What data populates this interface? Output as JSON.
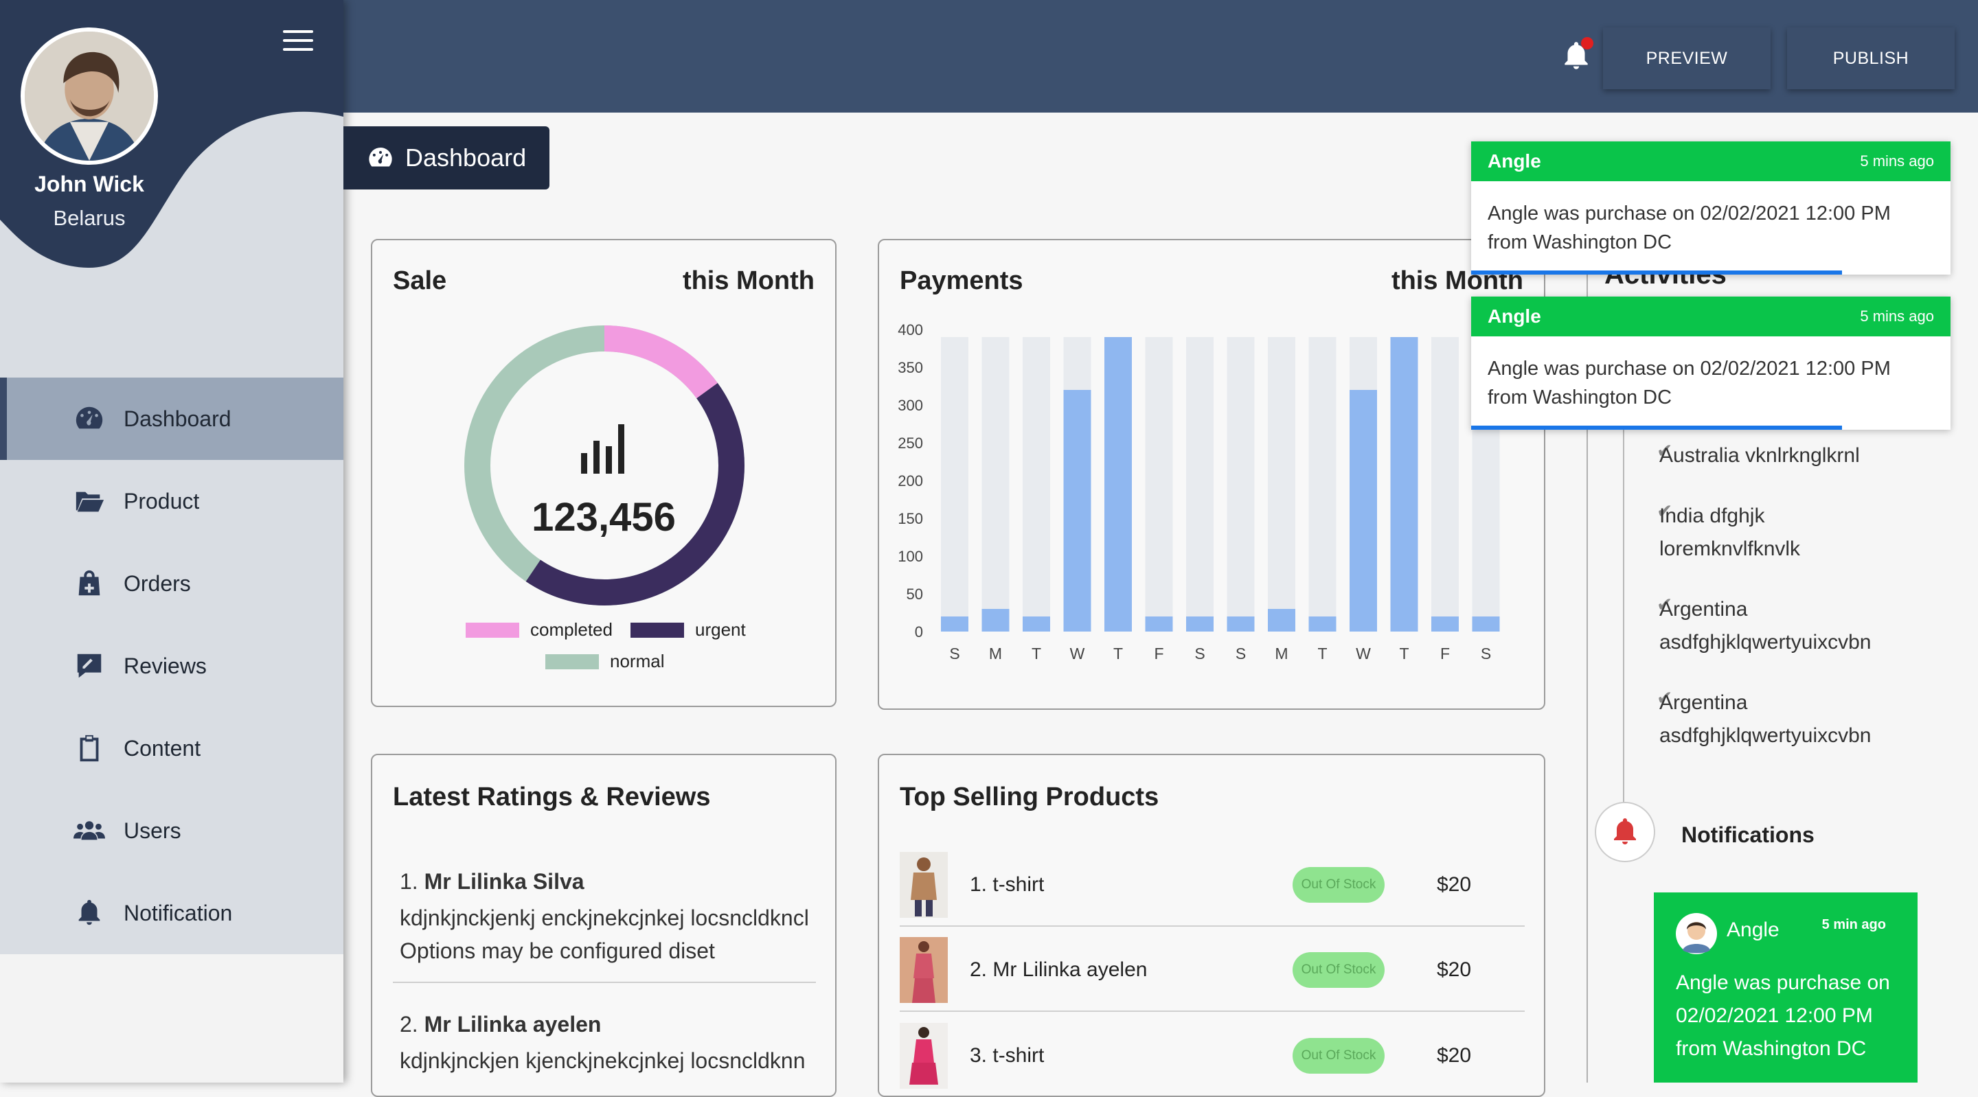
{
  "profile": {
    "name": "John Wick",
    "country": "Belarus"
  },
  "sidebar": {
    "items": [
      {
        "label": "Dashboard",
        "icon": "tachometer-icon"
      },
      {
        "label": "Product",
        "icon": "folder-open-icon"
      },
      {
        "label": "Orders",
        "icon": "shopping-bag-icon"
      },
      {
        "label": "Reviews",
        "icon": "edit-icon"
      },
      {
        "label": "Content",
        "icon": "clipboard-icon"
      },
      {
        "label": "Users",
        "icon": "users-icon"
      },
      {
        "label": "Notification",
        "icon": "bell-icon"
      }
    ]
  },
  "header": {
    "preview_label": "PREVIEW",
    "publish_label": "PUBLISH"
  },
  "breadcrumb": {
    "label": "Dashboard"
  },
  "sale_card": {
    "title": "Sale",
    "period": "this Month",
    "total": "123,456",
    "legend": [
      {
        "label": "completed",
        "color": "#f29be0"
      },
      {
        "label": "urgent",
        "color": "#3b2d5e"
      },
      {
        "label": "normal",
        "color": "#a9c9b9"
      }
    ]
  },
  "chart_data": {
    "type": "bar",
    "title": "Payments",
    "subtitle": "this Month",
    "categories": [
      "S",
      "M",
      "T",
      "W",
      "T",
      "F",
      "S",
      "S",
      "M",
      "T",
      "W",
      "T",
      "F",
      "S"
    ],
    "values": [
      20,
      30,
      20,
      320,
      390,
      20,
      20,
      20,
      30,
      20,
      320,
      390,
      20,
      20
    ],
    "background_max": 390,
    "ylim": [
      0,
      400
    ],
    "yticks": [
      0,
      50,
      100,
      150,
      200,
      250,
      300,
      350,
      400
    ],
    "colors": {
      "bar": "#8fb7f0",
      "track": "#e8ebef"
    }
  },
  "reviews": {
    "title": "Latest Ratings & Reviews",
    "items": [
      {
        "index": "1.",
        "name": "Mr Lilinka Silva",
        "line1": "kdjnkjnckjenkj enckjnekcjnkej locsncldkncl",
        "line2": "Options may be configured diset"
      },
      {
        "index": "2.",
        "name": "Mr Lilinka ayelen",
        "line1": "kdjnkjnckjen kjenckjnekcjnkej locsncldknn",
        "line2": ""
      }
    ]
  },
  "top_products": {
    "title": "Top Selling Products",
    "items": [
      {
        "name": "1. t-shirt",
        "stock": "Out Of Stock",
        "price": "$20"
      },
      {
        "name": "2. Mr Lilinka ayelen",
        "stock": "Out Of Stock",
        "price": "$20"
      },
      {
        "name": "3. t-shirt",
        "stock": "Out Of Stock",
        "price": "$20"
      }
    ]
  },
  "activities": {
    "title": "Activities",
    "items": [
      {
        "line1": "Australia vknlrknglkrnl",
        "line2": ""
      },
      {
        "line1": "India dfghjk",
        "line2": "loremknvlfknvlk"
      },
      {
        "line1": "Argentina",
        "line2": "asdfghjklqwertyuixcvbn"
      },
      {
        "line1": "Argentina",
        "line2": "asdfghjklqwertyuixcvbn"
      }
    ],
    "notifications_label": "Notifications",
    "notification_card": {
      "name": "Angle",
      "time": "5 min ago",
      "line1": "Angle was purchase on",
      "line2": "02/02/2021 12:00 PM",
      "line3": "from Washington DC"
    }
  },
  "toasts": [
    {
      "title": "Angle",
      "time": "5 mins ago",
      "message": "Angle was purchase on 02/02/2021 12:00 PM from Washington DC"
    },
    {
      "title": "Angle",
      "time": "5 mins ago",
      "message": "Angle was purchase on 02/02/2021 12:00 PM from Washington DC"
    }
  ]
}
